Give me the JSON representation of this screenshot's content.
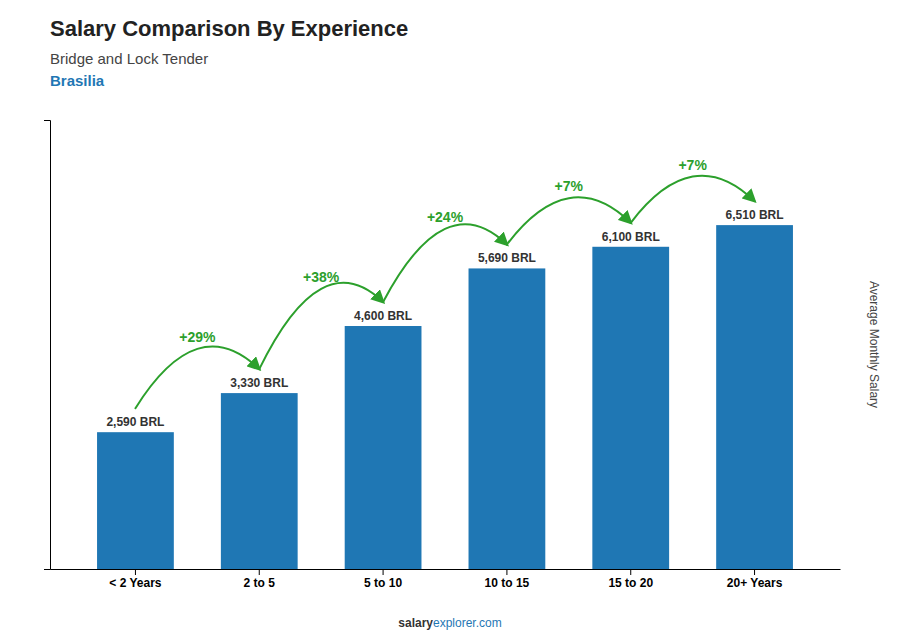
{
  "chart_data": {
    "type": "bar",
    "title": "Salary Comparison By Experience",
    "subtitle": [
      "Bridge and Lock Tender",
      "Brasilia"
    ],
    "categories": [
      "< 2 Years",
      "2 to 5",
      "5 to 10",
      "10 to 15",
      "15 to 20",
      "20+ Years"
    ],
    "values": [
      2590,
      3330,
      4600,
      5690,
      6100,
      6510
    ],
    "value_labels": [
      "2,590 BRL",
      "3,330 BRL",
      "4,600 BRL",
      "5,690 BRL",
      "6,100 BRL",
      "6,510 BRL"
    ],
    "data_labels": true,
    "annotations": [
      "+29%",
      "+38%",
      "+24%",
      "+7%",
      "+7%"
    ],
    "y_label": "Average Monthly Salary",
    "footer": [
      "salary",
      "explorer.com"
    ],
    "ylim": [
      0,
      8500
    ],
    "tick_labels": "x",
    "grid": false
  }
}
